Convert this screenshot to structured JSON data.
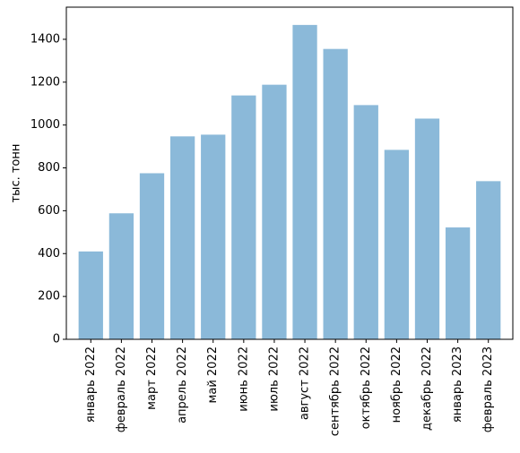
{
  "chart_data": {
    "type": "bar",
    "title": "",
    "xlabel": "",
    "ylabel": "тыс. тонн",
    "categories": [
      "январь 2022",
      "февраль 2022",
      "март 2022",
      "апрель 2022",
      "май 2022",
      "июнь 2022",
      "июль 2022",
      "август 2022",
      "сентябрь 2022",
      "октябрь 2022",
      "ноябрь 2022",
      "декабрь 2022",
      "январь 2023",
      "февраль 2023"
    ],
    "values": [
      410,
      588,
      775,
      947,
      955,
      1138,
      1188,
      1467,
      1355,
      1093,
      884,
      1030,
      522,
      738
    ],
    "ylim": [
      0,
      1550
    ],
    "yticks": [
      0,
      200,
      400,
      600,
      800,
      1000,
      1200,
      1400
    ],
    "grid": false,
    "legend": "none",
    "bar_color": "#8BB9D9"
  }
}
